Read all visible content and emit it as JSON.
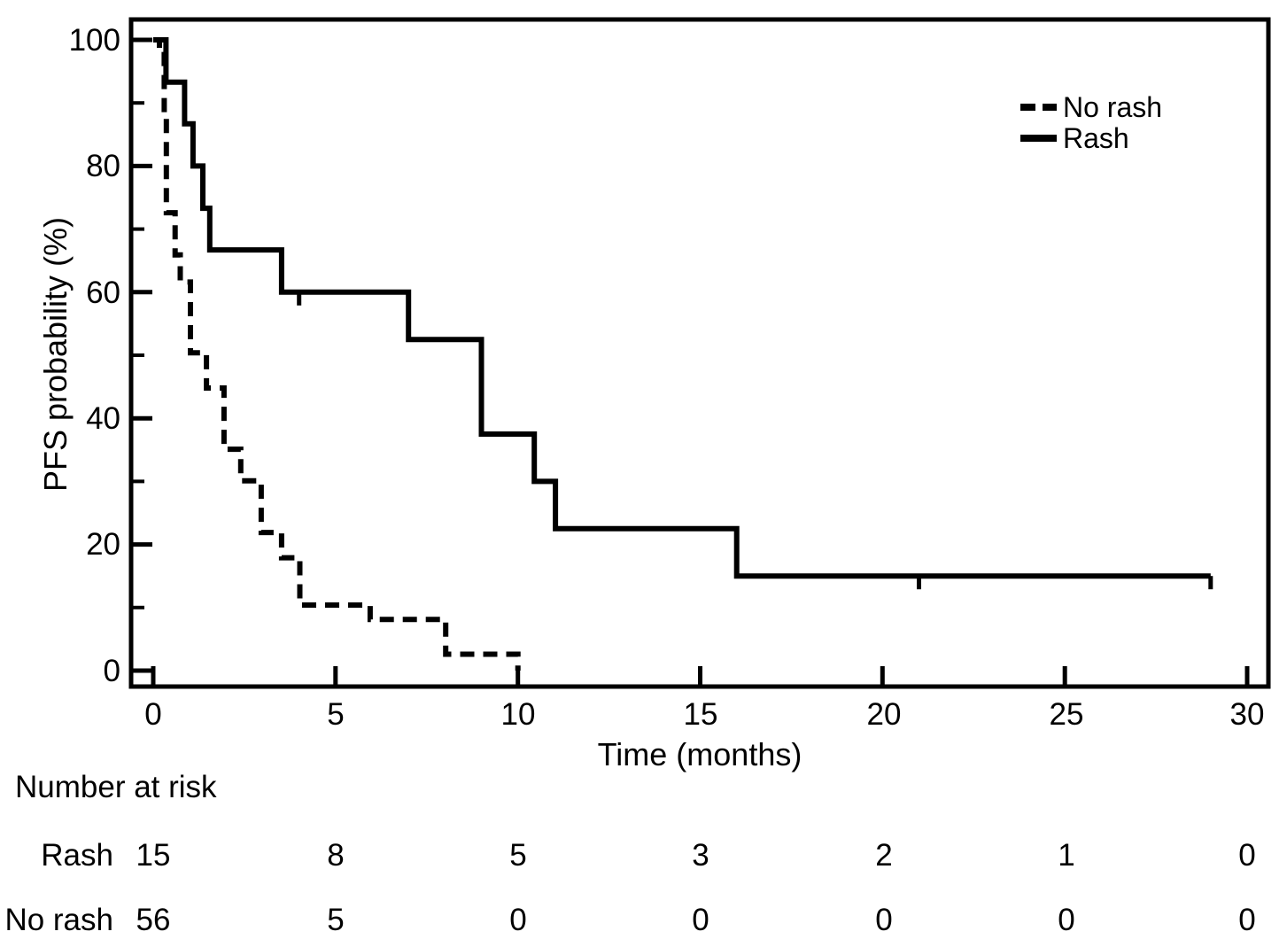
{
  "chart_data": {
    "type": "line",
    "subtype": "kaplan-meier-step",
    "title": "",
    "xlabel": "Time (months)",
    "ylabel": "PFS probability (%)",
    "xlim": [
      0,
      30
    ],
    "ylim": [
      0,
      100
    ],
    "grid": false,
    "legend_position": "upper-right",
    "x_ticks": [
      "0",
      "5",
      "10",
      "15",
      "20",
      "25",
      "30"
    ],
    "x_tick_values": [
      0,
      5,
      10,
      15,
      20,
      25,
      30
    ],
    "y_ticks": [
      "0",
      "20",
      "40",
      "60",
      "80",
      "100"
    ],
    "y_major_values": [
      0,
      20,
      40,
      60,
      80,
      100
    ],
    "y_minor_values": [
      10,
      30,
      50,
      70,
      90
    ],
    "series": [
      {
        "name": "Rash",
        "style": "solid",
        "steps": [
          [
            0,
            100
          ],
          [
            0.35,
            93.3
          ],
          [
            0.86,
            86.7
          ],
          [
            1.09,
            80
          ],
          [
            1.36,
            73.3
          ],
          [
            1.55,
            66.7
          ],
          [
            3.52,
            60
          ],
          [
            7.0,
            52.5
          ],
          [
            9.0,
            37.5
          ],
          [
            10.45,
            30
          ],
          [
            11.03,
            22.5
          ],
          [
            16.0,
            15
          ],
          [
            29.0,
            15
          ]
        ],
        "censor_marks": [
          [
            4.0,
            60
          ],
          [
            21.0,
            15
          ],
          [
            29.0,
            15
          ]
        ]
      },
      {
        "name": "No rash",
        "style": "dashed",
        "steps": [
          [
            0,
            100
          ],
          [
            0.17,
            98.4
          ],
          [
            0.3,
            88
          ],
          [
            0.36,
            72.6
          ],
          [
            0.6,
            65.9
          ],
          [
            0.74,
            61.6
          ],
          [
            1.02,
            50.4
          ],
          [
            1.46,
            44.8
          ],
          [
            1.94,
            35.1
          ],
          [
            2.4,
            30.1
          ],
          [
            2.96,
            21.9
          ],
          [
            3.52,
            17.9
          ],
          [
            4.02,
            10.4
          ],
          [
            5.95,
            8.1
          ],
          [
            8.02,
            2.6
          ],
          [
            10.0,
            0
          ]
        ],
        "censor_marks": []
      }
    ]
  },
  "legend": {
    "items": [
      {
        "label": "No rash",
        "style": "dashed"
      },
      {
        "label": "Rash",
        "style": "solid"
      }
    ]
  },
  "risk_table": {
    "title": "Number at risk",
    "time_points": [
      0,
      5,
      10,
      15,
      20,
      25,
      30
    ],
    "rows": [
      {
        "label": "Rash",
        "values": [
          "15",
          "8",
          "5",
          "3",
          "2",
          "1",
          "0"
        ]
      },
      {
        "label": "No rash",
        "values": [
          "56",
          "5",
          "0",
          "0",
          "0",
          "0",
          "0"
        ]
      }
    ]
  }
}
